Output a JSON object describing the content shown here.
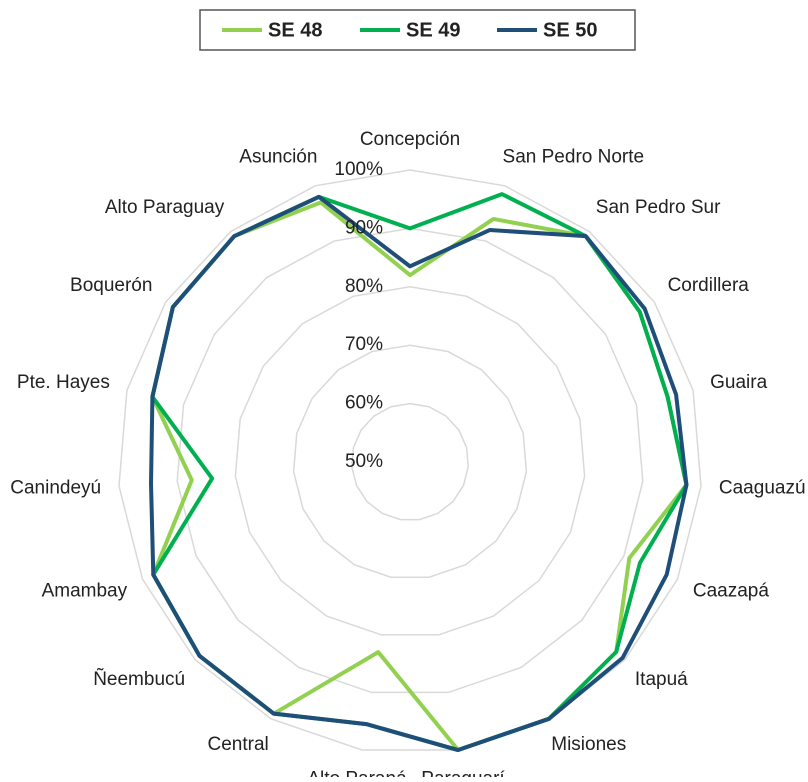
{
  "chart_data": {
    "type": "radar",
    "categories": [
      "Concepción",
      "San Pedro Norte",
      "San Pedro Sur",
      "Cordillera",
      "Guaira",
      "Caaguazú",
      "Caazapá",
      "Itapuá",
      "Misiones",
      "Paraguarí",
      "Alto Paraná",
      "Central",
      "Ñeembucú",
      "Amambay",
      "Canindeyú",
      "Pte. Hayes",
      "Boquerón",
      "Alto Paraguay",
      "Asunción"
    ],
    "series": [
      {
        "name": "SE 48",
        "color": "#92d050",
        "values": [
          82,
          94,
          99,
          97,
          95.5,
          97.5,
          91,
          98,
          100,
          100,
          83,
          99,
          99,
          98,
          87.5,
          95.5,
          98.5,
          99,
          97
        ]
      },
      {
        "name": "SE 49",
        "color": "#00b050",
        "values": [
          90,
          98.5,
          99,
          97,
          95.5,
          97.5,
          93,
          98,
          100,
          100,
          95.5,
          99,
          99,
          98,
          84,
          95.5,
          98.5,
          99,
          98
        ]
      },
      {
        "name": "SE 50",
        "color": "#1f4e79",
        "values": [
          83.5,
          92,
          99,
          98,
          97,
          97.5,
          98,
          99.5,
          100,
          100,
          95.5,
          99,
          99,
          98,
          94.5,
          95.5,
          98.5,
          99,
          98
        ]
      }
    ],
    "ylim": [
      50,
      100
    ],
    "yticks": [
      {
        "value": 50,
        "label": "50%"
      },
      {
        "value": 60,
        "label": "60%"
      },
      {
        "value": 70,
        "label": "70%"
      },
      {
        "value": 80,
        "label": "80%"
      },
      {
        "value": 90,
        "label": "90%"
      },
      {
        "value": 100,
        "label": "100%"
      }
    ],
    "grid": true,
    "legend": "top"
  }
}
